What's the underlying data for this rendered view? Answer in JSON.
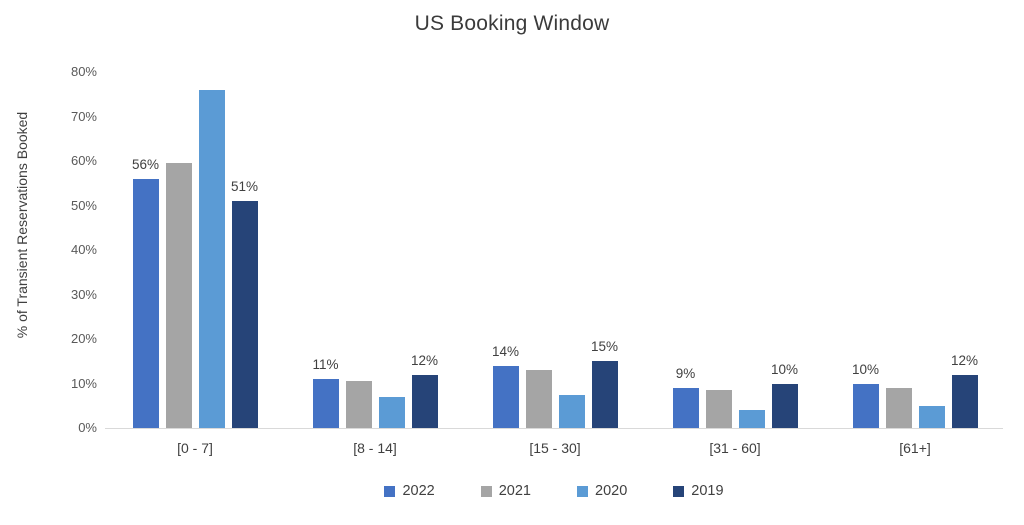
{
  "chart_data": {
    "type": "bar",
    "title": "US Booking Window",
    "xlabel": "",
    "ylabel": "% of Transient Reservations Booked",
    "ylim": [
      0,
      80
    ],
    "grid": false,
    "legend_position": "bottom",
    "yticks": [
      "0%",
      "10%",
      "20%",
      "30%",
      "40%",
      "50%",
      "60%",
      "70%",
      "80%"
    ],
    "categories": [
      "[0 - 7]",
      "[8 - 14]",
      "[15 - 30]",
      "[31 - 60]",
      "[61+]"
    ],
    "series": [
      {
        "name": "2022",
        "color": "#4472C4",
        "values": [
          56,
          11,
          14,
          9,
          10
        ],
        "data_labels": [
          "56%",
          "11%",
          "14%",
          "9%",
          "10%"
        ]
      },
      {
        "name": "2021",
        "color": "#A5A5A5",
        "values": [
          59.5,
          10.5,
          13,
          8.5,
          9
        ],
        "data_labels": [
          "",
          "",
          "",
          "",
          ""
        ]
      },
      {
        "name": "2020",
        "color": "#5B9BD5",
        "values": [
          76,
          7,
          7.5,
          4,
          5
        ],
        "data_labels": [
          "",
          "",
          "",
          "",
          ""
        ]
      },
      {
        "name": "2019",
        "color": "#264478",
        "values": [
          51,
          12,
          15,
          10,
          12
        ],
        "data_labels": [
          "51%",
          "12%",
          "15%",
          "10%",
          "12%"
        ]
      }
    ]
  }
}
